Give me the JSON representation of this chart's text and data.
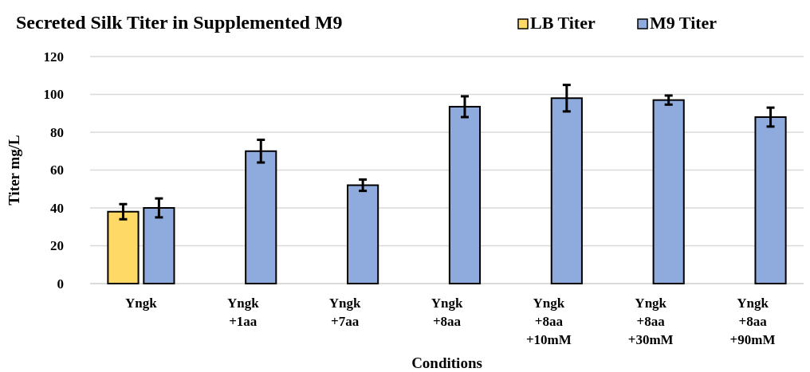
{
  "chart_data": {
    "type": "bar",
    "title": "Secreted Silk Titer in Supplemented M9",
    "xlabel": "Conditions",
    "ylabel": "Titer mg/L",
    "categories": [
      "Yngk",
      "Yngk\n+1aa",
      "Yngk\n+7aa",
      "Yngk\n+8aa",
      "Yngk\n+8aa\n+10mM",
      "Yngk\n+8aa\n+30mM",
      "Yngk\n+8aa\n+90mM"
    ],
    "series": [
      {
        "name": "LB Titer",
        "color": "#ffd966",
        "values": [
          38,
          null,
          null,
          null,
          null,
          null,
          null
        ],
        "errors": [
          4,
          null,
          null,
          null,
          null,
          null,
          null
        ]
      },
      {
        "name": "M9 Titer",
        "color": "#8faadc",
        "values": [
          40,
          70,
          52,
          93.5,
          98,
          97,
          88
        ],
        "errors": [
          5,
          6,
          3,
          5.5,
          7,
          2.4,
          5
        ]
      }
    ],
    "ylim": [
      0,
      120
    ],
    "yticks": [
      0,
      20,
      40,
      60,
      80,
      100,
      120
    ],
    "grid": "y",
    "legend": "top right"
  }
}
